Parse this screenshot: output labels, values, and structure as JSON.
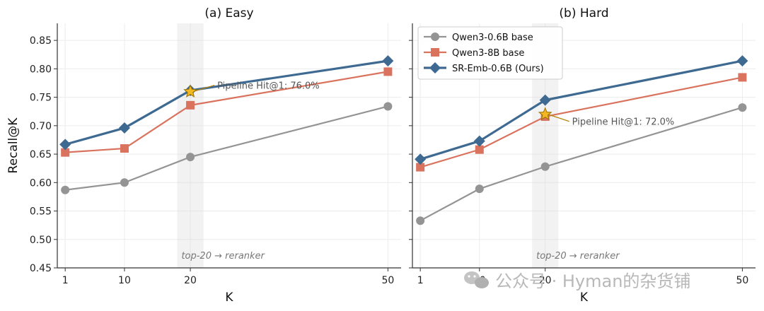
{
  "figure": {
    "watermark": "公众号 · Hyman的杂货铺"
  },
  "chart_data": [
    {
      "type": "line",
      "title": "(a) Easy",
      "xlabel": "K",
      "ylabel": "Recall@K",
      "x": [
        1,
        10,
        20,
        50
      ],
      "xticks": [
        "1",
        "10",
        "20",
        "50"
      ],
      "xlim": [
        -0.2,
        52
      ],
      "ylim": [
        0.45,
        0.88
      ],
      "yticks": [
        "0.45",
        "0.50",
        "0.55",
        "0.60",
        "0.65",
        "0.70",
        "0.75",
        "0.80",
        "0.85"
      ],
      "grid": true,
      "band": {
        "from": 18,
        "to": 22,
        "label": "top-20 → reranker"
      },
      "series": [
        {
          "name": "Qwen3-0.6B base",
          "values": [
            0.587,
            0.6,
            0.645,
            0.734
          ],
          "color": "#949494",
          "marker": "circle"
        },
        {
          "name": "Qwen3-8B base",
          "values": [
            0.653,
            0.66,
            0.736,
            0.795
          ],
          "color": "#d9735e",
          "marker": "square"
        },
        {
          "name": "SR-Emb-0.6B (Ours)",
          "values": [
            0.667,
            0.696,
            0.762,
            0.814
          ],
          "color": "#3e6a92",
          "marker": "diamond"
        }
      ],
      "annotation": {
        "x": 20,
        "y": 0.76,
        "text": "Pipeline Hit@1: 76.0%",
        "star_color": "#f2b822"
      },
      "legend": null
    },
    {
      "type": "line",
      "title": "(b) Hard",
      "xlabel": "K",
      "ylabel": "",
      "x": [
        1,
        10,
        20,
        50
      ],
      "xticks": [
        "1",
        "10",
        "20",
        "50"
      ],
      "xlim": [
        -0.2,
        52
      ],
      "ylim": [
        0.45,
        0.88
      ],
      "grid": true,
      "band": {
        "from": 18,
        "to": 22,
        "label": "top-20 → reranker"
      },
      "series": [
        {
          "name": "Qwen3-0.6B base",
          "values": [
            0.533,
            0.589,
            0.628,
            0.732
          ],
          "color": "#949494",
          "marker": "circle"
        },
        {
          "name": "Qwen3-8B base",
          "values": [
            0.627,
            0.658,
            0.716,
            0.785
          ],
          "color": "#d9735e",
          "marker": "square"
        },
        {
          "name": "SR-Emb-0.6B (Ours)",
          "values": [
            0.641,
            0.673,
            0.745,
            0.814
          ],
          "color": "#3e6a92",
          "marker": "diamond"
        }
      ],
      "annotation": {
        "x": 20,
        "y": 0.72,
        "text": "Pipeline Hit@1: 72.0%",
        "star_color": "#f2b822"
      },
      "legend": "top-left"
    }
  ]
}
